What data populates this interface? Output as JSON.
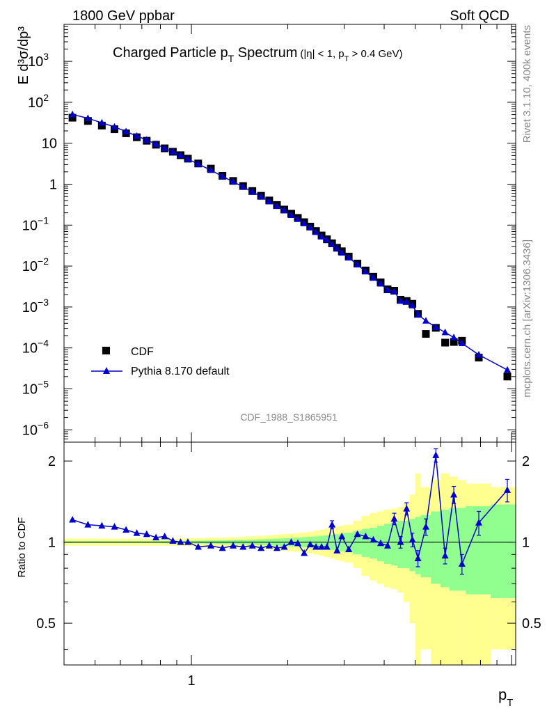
{
  "header": {
    "left": "1800 GeV ppbar",
    "right": "Soft QCD"
  },
  "side_text": {
    "rivet": "Rivet 3.1.10,  400k events",
    "mcplots": "mcplots.cern.ch [arXiv:1306.3436]"
  },
  "chart_data": [
    {
      "type": "scatter",
      "title_main": "Charged Particle p",
      "title_sub": "T",
      "title_main2": " Spectrum",
      "title_cut": "(|η| < 1, p",
      "title_cut_sub": "T",
      "title_cut2": " > 0.4 GeV)",
      "ylabel": "E d³σ/dp³",
      "watermark": "CDF_1988_S1865951",
      "log_x": true,
      "log_y": true,
      "xlim": [
        0.4,
        10.3
      ],
      "ylim": [
        5e-07,
        8000
      ],
      "ytick_labels": [
        {
          "v": 1e-06,
          "base": "10",
          "exp": "−6"
        },
        {
          "v": 1e-05,
          "base": "10",
          "exp": "−5"
        },
        {
          "v": 0.0001,
          "base": "10",
          "exp": "−4"
        },
        {
          "v": 0.001,
          "base": "10",
          "exp": "−3"
        },
        {
          "v": 0.01,
          "base": "10",
          "exp": "−2"
        },
        {
          "v": 0.1,
          "base": "10",
          "exp": "−1"
        },
        {
          "v": 1,
          "base": "1",
          "exp": ""
        },
        {
          "v": 10,
          "base": "10",
          "exp": ""
        },
        {
          "v": 100,
          "base": "10",
          "exp": "2"
        },
        {
          "v": 1000,
          "base": "10",
          "exp": "3"
        }
      ],
      "legend": {
        "position": "lower-left",
        "entries": [
          "CDF",
          "Pythia 8.170 default"
        ]
      },
      "colors": {
        "data": "#000000",
        "mc": "#0000cc"
      },
      "series": [
        {
          "name": "CDF",
          "x": [
            0.425,
            0.475,
            0.525,
            0.575,
            0.625,
            0.675,
            0.725,
            0.775,
            0.825,
            0.875,
            0.925,
            0.975,
            1.05,
            1.15,
            1.25,
            1.35,
            1.45,
            1.55,
            1.65,
            1.75,
            1.85,
            1.95,
            2.05,
            2.15,
            2.25,
            2.35,
            2.45,
            2.55,
            2.65,
            2.75,
            2.85,
            2.95,
            3.1,
            3.3,
            3.5,
            3.7,
            3.9,
            4.1,
            4.3,
            4.5,
            4.7,
            4.9,
            5.1,
            5.4,
            5.8,
            6.2,
            6.6,
            7.0,
            7.9,
            9.7
          ],
          "y": [
            42,
            35,
            27,
            22,
            17.5,
            14,
            11.5,
            9.2,
            7.5,
            6.2,
            5.1,
            4.2,
            3.2,
            2.4,
            1.6,
            1.2,
            0.9,
            0.68,
            0.52,
            0.4,
            0.31,
            0.24,
            0.19,
            0.15,
            0.118,
            0.092,
            0.072,
            0.056,
            0.045,
            0.036,
            0.028,
            0.023,
            0.017,
            0.0115,
            0.0078,
            0.0055,
            0.004,
            0.0027,
            0.0025,
            0.0015,
            0.0014,
            0.0012,
            0.00068,
            0.00022,
            0.00031,
            0.000135,
            0.00014,
            0.00015,
            5.8e-05,
            2e-05
          ]
        },
        {
          "name": "Pythia 8.170 default",
          "x": [
            0.425,
            0.475,
            0.525,
            0.575,
            0.625,
            0.675,
            0.725,
            0.775,
            0.825,
            0.875,
            0.925,
            0.975,
            1.05,
            1.15,
            1.25,
            1.35,
            1.45,
            1.55,
            1.65,
            1.75,
            1.85,
            1.95,
            2.05,
            2.15,
            2.25,
            2.35,
            2.45,
            2.55,
            2.65,
            2.75,
            2.85,
            2.95,
            3.1,
            3.3,
            3.5,
            3.7,
            3.9,
            4.1,
            4.3,
            4.5,
            4.7,
            4.9,
            5.1,
            5.4,
            5.8,
            6.2,
            6.6,
            7.0,
            7.9,
            9.7
          ],
          "y": [
            50.5,
            40.6,
            31.6,
            25.1,
            19.3,
            15.0,
            12.0,
            9.5,
            7.5,
            6.2,
            5.1,
            4.1,
            3.1,
            2.2,
            1.55,
            1.15,
            0.86,
            0.65,
            0.5,
            0.38,
            0.29,
            0.23,
            0.175,
            0.14,
            0.11,
            0.088,
            0.067,
            0.052,
            0.044,
            0.034,
            0.027,
            0.021,
            0.016,
            0.0108,
            0.0073,
            0.0051,
            0.0037,
            0.0026,
            0.0024,
            0.0014,
            0.00134,
            0.00108,
            0.00065,
            0.00046,
            0.00032,
            0.00024,
            0.00018,
            0.00013,
            6.8e-05,
            2.9e-05
          ]
        }
      ]
    },
    {
      "type": "line",
      "ylabel": "Ratio to CDF",
      "xlabel_main": "p",
      "xlabel_sub": "T",
      "xtick_labels": [
        {
          "v": 1,
          "label": "1"
        }
      ],
      "ytick_labels": [
        {
          "v": 0.5,
          "label": "0.5"
        },
        {
          "v": 1,
          "label": "1"
        },
        {
          "v": 2,
          "label": "2"
        }
      ],
      "log_x": true,
      "log_y": true,
      "xlim": [
        0.4,
        10.3
      ],
      "ylim": [
        0.35,
        2.35
      ],
      "colors": {
        "band_stat": "#90ff90",
        "band_total": "#ffff90",
        "reference": "#000000",
        "mc": "#0000cc"
      },
      "bins": [
        0.4,
        0.45,
        0.5,
        0.55,
        0.6,
        0.65,
        0.7,
        0.75,
        0.8,
        0.85,
        0.9,
        0.95,
        1.0,
        1.1,
        1.2,
        1.3,
        1.4,
        1.5,
        1.6,
        1.7,
        1.8,
        1.9,
        2.0,
        2.1,
        2.2,
        2.3,
        2.4,
        2.5,
        2.6,
        2.7,
        2.8,
        2.9,
        3.0,
        3.2,
        3.4,
        3.6,
        3.8,
        4.0,
        4.2,
        4.4,
        4.6,
        4.8,
        5.0,
        5.2,
        5.6,
        6.0,
        6.4,
        6.8,
        7.2,
        8.6,
        10.3
      ],
      "band_stat": [
        0.008,
        0.008,
        0.008,
        0.008,
        0.008,
        0.008,
        0.008,
        0.008,
        0.01,
        0.01,
        0.01,
        0.012,
        0.012,
        0.014,
        0.016,
        0.018,
        0.02,
        0.022,
        0.025,
        0.028,
        0.03,
        0.033,
        0.036,
        0.04,
        0.043,
        0.047,
        0.05,
        0.055,
        0.06,
        0.065,
        0.07,
        0.075,
        0.085,
        0.1,
        0.12,
        0.13,
        0.15,
        0.17,
        0.18,
        0.2,
        0.2,
        0.22,
        0.24,
        0.26,
        0.3,
        0.32,
        0.34,
        0.34,
        0.36,
        0.38
      ],
      "band_total": [
        0.03,
        0.03,
        0.03,
        0.03,
        0.03,
        0.03,
        0.03,
        0.03,
        0.03,
        0.03,
        0.032,
        0.034,
        0.035,
        0.038,
        0.04,
        0.043,
        0.047,
        0.05,
        0.055,
        0.06,
        0.065,
        0.07,
        0.075,
        0.08,
        0.085,
        0.09,
        0.1,
        0.11,
        0.12,
        0.13,
        0.14,
        0.15,
        0.16,
        0.2,
        0.25,
        0.28,
        0.3,
        0.32,
        0.33,
        0.35,
        0.4,
        0.5,
        0.8,
        0.6,
        0.7,
        0.8,
        0.75,
        0.7,
        0.65,
        0.6
      ],
      "ratio": [
        1.21,
        1.16,
        1.15,
        1.14,
        1.11,
        1.08,
        1.07,
        1.04,
        1.05,
        1.01,
        1.0,
        1.0,
        0.96,
        0.97,
        0.95,
        0.97,
        0.96,
        0.97,
        0.95,
        0.97,
        0.95,
        0.96,
        1.0,
        0.99,
        0.91,
        0.98,
        0.96,
        0.96,
        0.96,
        1.16,
        0.93,
        1.05,
        0.94,
        1.07,
        1.05,
        1.02,
        0.99,
        0.97,
        1.22,
        1.0,
        1.33,
        1.02,
        0.87,
        1.14,
        2.1,
        0.89,
        1.5,
        0.83,
        1.18,
        1.56
      ],
      "ratio_err": [
        0,
        0,
        0,
        0,
        0,
        0,
        0,
        0,
        0,
        0,
        0,
        0,
        0,
        0,
        0,
        0,
        0,
        0,
        0,
        0,
        0,
        0,
        0,
        0,
        0,
        0,
        0,
        0,
        0,
        0.04,
        0,
        0,
        0,
        0,
        0,
        0,
        0,
        0,
        0.06,
        0.05,
        0.07,
        0.06,
        0.06,
        0.08,
        0.12,
        0.06,
        0.11,
        0.07,
        0.12,
        0.15
      ]
    }
  ]
}
